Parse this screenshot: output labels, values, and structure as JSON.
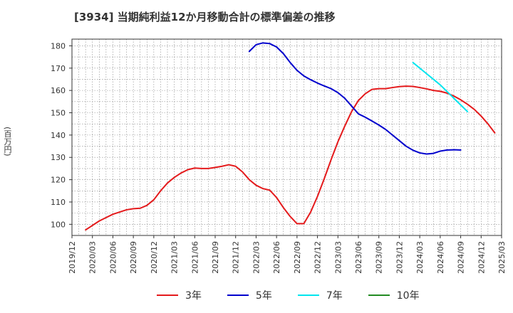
{
  "chart_data": {
    "type": "line",
    "title": "[3934]  当期純利益12か月移動合計の標準偏差の推移",
    "xlabel": "",
    "ylabel": "(百万円)",
    "ylim": [
      95,
      183
    ],
    "yticks": [
      100,
      110,
      120,
      130,
      140,
      150,
      160,
      170,
      180
    ],
    "x_range": [
      "2019-12",
      "2025-03"
    ],
    "x_tick_labels": [
      "2019/12",
      "2020/03",
      "2020/06",
      "2020/09",
      "2020/12",
      "2021/03",
      "2021/06",
      "2021/09",
      "2021/12",
      "2022/03",
      "2022/06",
      "2022/09",
      "2022/12",
      "2023/03",
      "2023/06",
      "2023/09",
      "2023/12",
      "2024/03",
      "2024/06",
      "2024/09",
      "2024/12",
      "2025/03"
    ],
    "grid": true,
    "legend_position": "bottom",
    "series": [
      {
        "name": "3年",
        "color": "#e41a1c",
        "start": "2020-02",
        "values": [
          97.5,
          99.5,
          101.5,
          103.0,
          104.5,
          105.5,
          106.5,
          107.0,
          107.2,
          108.5,
          111.0,
          115.0,
          118.5,
          121.0,
          123.0,
          124.5,
          125.2,
          125.0,
          125.0,
          125.5,
          126.0,
          126.7,
          126.0,
          123.5,
          120.0,
          117.5,
          116.0,
          115.3,
          112.0,
          107.5,
          103.5,
          100.3,
          100.3,
          105.5,
          112.5,
          120.5,
          129.0,
          137.0,
          144.0,
          150.5,
          155.5,
          158.5,
          160.5,
          160.8,
          160.8,
          161.3,
          161.7,
          161.9,
          161.8,
          161.3,
          160.7,
          160.0,
          159.6,
          158.8,
          157.5,
          155.8,
          153.8,
          151.5,
          148.5,
          145.0,
          141.0
        ]
      },
      {
        "name": "5年",
        "color": "#0000cd",
        "start": "2022-02",
        "values": [
          177.5,
          180.5,
          181.3,
          181.0,
          179.5,
          176.5,
          172.5,
          169.0,
          166.5,
          164.8,
          163.3,
          162.0,
          160.8,
          159.0,
          156.5,
          153.0,
          149.5,
          148.0,
          146.3,
          144.5,
          142.5,
          140.0,
          137.5,
          135.0,
          133.2,
          132.0,
          131.5,
          131.8,
          132.8,
          133.3,
          133.4,
          133.3
        ]
      },
      {
        "name": "7年",
        "color": "#00e5ee",
        "start": "2024-02",
        "values": [
          172.5,
          170.0,
          167.5,
          165.0,
          162.5,
          159.5,
          156.5,
          153.5,
          150.5
        ]
      },
      {
        "name": "10年",
        "color": "#228b22",
        "start": "2024-12",
        "values": []
      }
    ]
  }
}
